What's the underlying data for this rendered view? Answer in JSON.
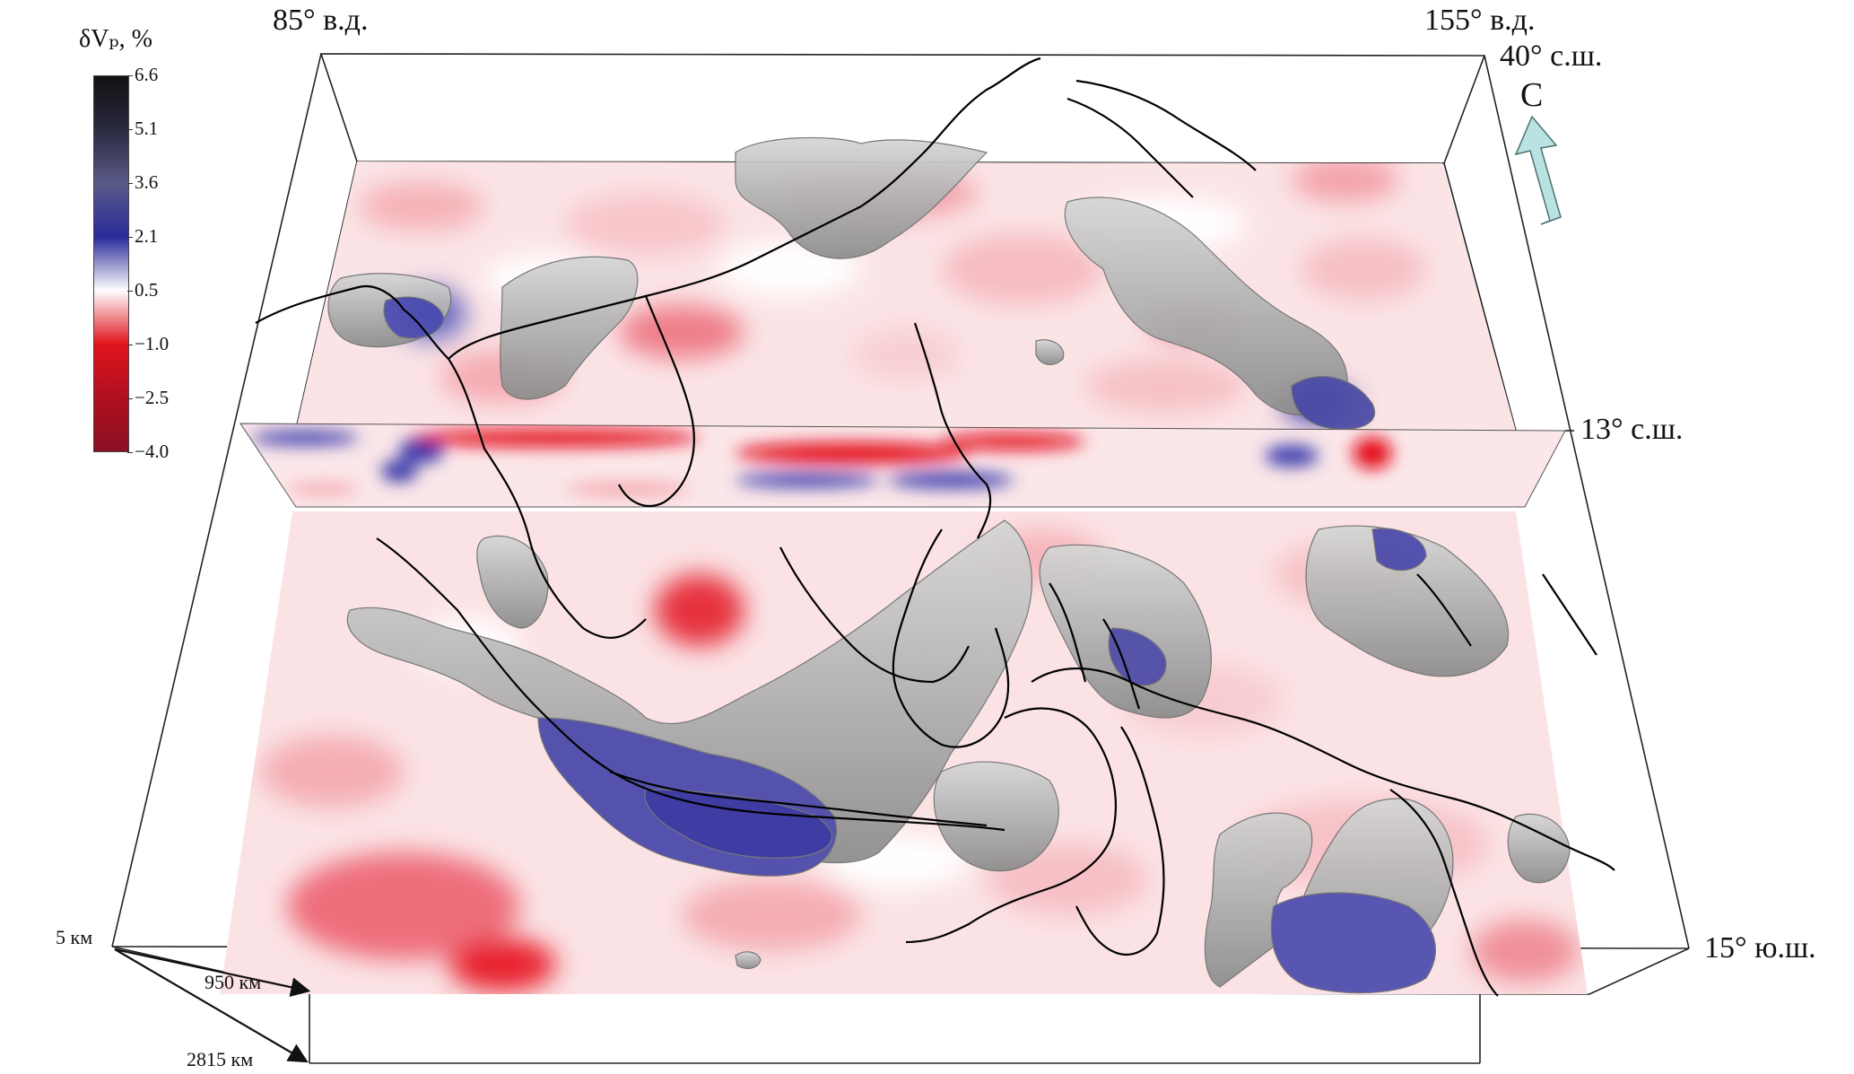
{
  "colorbar": {
    "title": "δVₚ, %",
    "ticks": [
      "6.6",
      "5.1",
      "3.6",
      "2.1",
      "0.5",
      "−1.0",
      "−2.5",
      "−4.0"
    ],
    "colors": [
      "#111111",
      "#2a2a40",
      "#5a5a88",
      "#2a2a9a",
      "#ffffff",
      "#e0141c",
      "#b01020",
      "#8a0f22"
    ]
  },
  "labels": {
    "lon_west": "85° в.д.",
    "lon_east": "155° в.д.",
    "lat_north": "40° с.ш.",
    "lat_mid": "13° с.ш.",
    "lat_south": "15° ю.ш.",
    "north": "С",
    "depth_top": "5 км",
    "depth_mid": "950 км",
    "depth_bottom": "2815 км"
  },
  "palette": {
    "fast_anomaly": "#3a3aa8",
    "slow_anomaly": "#e8141e",
    "isosurface": "#9c9c9c",
    "arrow": "#b9e3e3",
    "coastline": "#000000"
  }
}
